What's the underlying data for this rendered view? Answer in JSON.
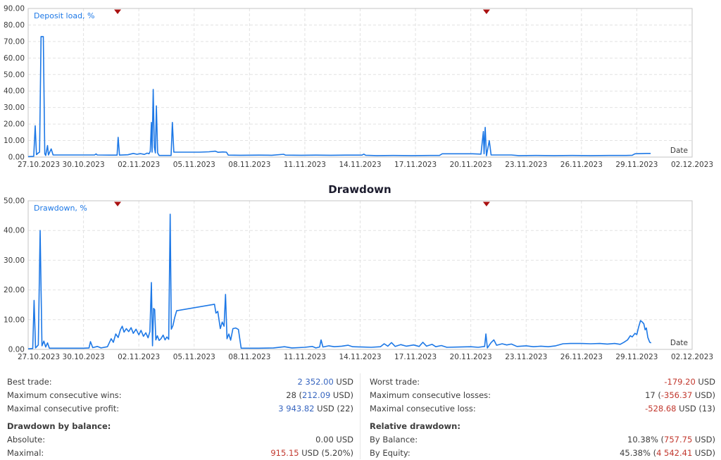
{
  "colors": {
    "line": "#1d78e6",
    "marker": "#aa1111",
    "grid": "#e2e2e2",
    "frame": "#c4c4c4",
    "tick_text": "#3a3a3a",
    "title_text": "#1c1c2e",
    "value_blue": "#3866c0",
    "value_red": "#c2382e",
    "plain_text": "#3c3c3c"
  },
  "chart_data": [
    {
      "type": "line",
      "id": "deposit-load",
      "title": "",
      "series_label": "Deposit load, %",
      "date_label": "Date",
      "xlim": [
        0,
        36
      ],
      "ylim": [
        0,
        90
      ],
      "grid": "dashed",
      "yticks": [
        {
          "v": 0,
          "label": "0.00"
        },
        {
          "v": 10,
          "label": "10.00"
        },
        {
          "v": 20,
          "label": "20.00"
        },
        {
          "v": 30,
          "label": "30.00"
        },
        {
          "v": 40,
          "label": "40.00"
        },
        {
          "v": 50,
          "label": "50.00"
        },
        {
          "v": 60,
          "label": "60.00"
        },
        {
          "v": 70,
          "label": "70.00"
        },
        {
          "v": 80,
          "label": "80.00"
        },
        {
          "v": 90,
          "label": "90.00"
        }
      ],
      "xticks": [
        {
          "d": 0,
          "label": "27.10.2023"
        },
        {
          "d": 3,
          "label": "30.10.2023"
        },
        {
          "d": 6,
          "label": "02.11.2023"
        },
        {
          "d": 9,
          "label": "05.11.2023"
        },
        {
          "d": 12,
          "label": "08.11.2023"
        },
        {
          "d": 15,
          "label": "11.11.2023"
        },
        {
          "d": 18,
          "label": "14.11.2023"
        },
        {
          "d": 21,
          "label": "17.11.2023"
        },
        {
          "d": 24,
          "label": "20.11.2023"
        },
        {
          "d": 27,
          "label": "23.11.2023"
        },
        {
          "d": 30,
          "label": "26.11.2023"
        },
        {
          "d": 33,
          "label": "29.11.2023"
        },
        {
          "d": 36,
          "label": "02.12.2023"
        }
      ],
      "markers": [
        4.85,
        24.85
      ],
      "points": [
        [
          0.0,
          0.3
        ],
        [
          0.25,
          0.4
        ],
        [
          0.3,
          0.5
        ],
        [
          0.38,
          19
        ],
        [
          0.45,
          1.5
        ],
        [
          0.55,
          2.5
        ],
        [
          0.62,
          3
        ],
        [
          0.7,
          73
        ],
        [
          0.82,
          73
        ],
        [
          0.9,
          2
        ],
        [
          0.95,
          1
        ],
        [
          1.05,
          7
        ],
        [
          1.1,
          1.3
        ],
        [
          1.25,
          5
        ],
        [
          1.35,
          1.3
        ],
        [
          2.0,
          1.3
        ],
        [
          3.0,
          1.3
        ],
        [
          3.6,
          1.3
        ],
        [
          3.68,
          1.9
        ],
        [
          3.75,
          1.3
        ],
        [
          4.4,
          1.2
        ],
        [
          4.82,
          1.2
        ],
        [
          4.88,
          12
        ],
        [
          4.95,
          1.2
        ],
        [
          5.4,
          1.4
        ],
        [
          5.7,
          2.2
        ],
        [
          5.9,
          1.7
        ],
        [
          6.1,
          2.1
        ],
        [
          6.3,
          1.6
        ],
        [
          6.45,
          2.4
        ],
        [
          6.55,
          2.0
        ],
        [
          6.62,
          3.5
        ],
        [
          6.68,
          21
        ],
        [
          6.72,
          3
        ],
        [
          6.78,
          41
        ],
        [
          6.84,
          6
        ],
        [
          6.9,
          2.5
        ],
        [
          6.95,
          31
        ],
        [
          7.02,
          2.5
        ],
        [
          7.1,
          1.0
        ],
        [
          7.75,
          1.0
        ],
        [
          7.82,
          21
        ],
        [
          7.9,
          3.0
        ],
        [
          8.5,
          3.0
        ],
        [
          9.3,
          3.0
        ],
        [
          9.8,
          3.2
        ],
        [
          10.15,
          3.6
        ],
        [
          10.3,
          2.9
        ],
        [
          10.55,
          3.1
        ],
        [
          10.75,
          3.0
        ],
        [
          10.85,
          1.2
        ],
        [
          11.5,
          1.1
        ],
        [
          12.5,
          1.2
        ],
        [
          13.2,
          1.1
        ],
        [
          13.85,
          1.7
        ],
        [
          13.95,
          1.2
        ],
        [
          14.8,
          1.1
        ],
        [
          15.6,
          1.2
        ],
        [
          16.4,
          1.1
        ],
        [
          17.2,
          1.2
        ],
        [
          18.1,
          1.2
        ],
        [
          18.2,
          1.8
        ],
        [
          18.3,
          1.1
        ],
        [
          18.9,
          0.9
        ],
        [
          19.8,
          1.0
        ],
        [
          20.8,
          0.9
        ],
        [
          21.8,
          1.0
        ],
        [
          22.3,
          1.0
        ],
        [
          22.45,
          2.0
        ],
        [
          23.3,
          2.0
        ],
        [
          24.1,
          2.0
        ],
        [
          24.55,
          1.8
        ],
        [
          24.68,
          15.5
        ],
        [
          24.72,
          2
        ],
        [
          24.78,
          18
        ],
        [
          24.85,
          0.8
        ],
        [
          25.0,
          10
        ],
        [
          25.1,
          1.3
        ],
        [
          25.6,
          1.3
        ],
        [
          26.2,
          1.3
        ],
        [
          26.6,
          0.9
        ],
        [
          27.5,
          1.0
        ],
        [
          28.5,
          0.9
        ],
        [
          29.5,
          1.0
        ],
        [
          30.5,
          0.9
        ],
        [
          31.5,
          1.0
        ],
        [
          32.4,
          1.0
        ],
        [
          32.75,
          1.1
        ],
        [
          32.9,
          2.0
        ],
        [
          33.2,
          2.1
        ],
        [
          33.5,
          2.2
        ],
        [
          33.75,
          2.2
        ]
      ]
    },
    {
      "type": "line",
      "id": "drawdown",
      "title": "Drawdown",
      "series_label": "Drawdown, %",
      "date_label": "Date",
      "xlim": [
        0,
        36
      ],
      "ylim": [
        0,
        50
      ],
      "grid": "dashed",
      "yticks": [
        {
          "v": 0,
          "label": "0.00"
        },
        {
          "v": 10,
          "label": "10.00"
        },
        {
          "v": 20,
          "label": "20.00"
        },
        {
          "v": 30,
          "label": "30.00"
        },
        {
          "v": 40,
          "label": "40.00"
        },
        {
          "v": 50,
          "label": "50.00"
        }
      ],
      "xticks": [
        {
          "d": 0,
          "label": "27.10.2023"
        },
        {
          "d": 3,
          "label": "30.10.2023"
        },
        {
          "d": 6,
          "label": "02.11.2023"
        },
        {
          "d": 9,
          "label": "05.11.2023"
        },
        {
          "d": 12,
          "label": "08.11.2023"
        },
        {
          "d": 15,
          "label": "11.11.2023"
        },
        {
          "d": 18,
          "label": "14.11.2023"
        },
        {
          "d": 21,
          "label": "17.11.2023"
        },
        {
          "d": 24,
          "label": "20.11.2023"
        },
        {
          "d": 27,
          "label": "23.11.2023"
        },
        {
          "d": 30,
          "label": "26.11.2023"
        },
        {
          "d": 33,
          "label": "29.11.2023"
        },
        {
          "d": 36,
          "label": "02.12.2023"
        }
      ],
      "markers": [
        4.85,
        24.85
      ],
      "points": [
        [
          0.0,
          0.2
        ],
        [
          0.25,
          0.3
        ],
        [
          0.32,
          16.5
        ],
        [
          0.4,
          0.5
        ],
        [
          0.55,
          1.5
        ],
        [
          0.65,
          40
        ],
        [
          0.75,
          1.2
        ],
        [
          0.85,
          2.8
        ],
        [
          0.95,
          0.8
        ],
        [
          1.05,
          2.2
        ],
        [
          1.15,
          0.4
        ],
        [
          2.0,
          0.4
        ],
        [
          3.0,
          0.4
        ],
        [
          3.3,
          0.5
        ],
        [
          3.38,
          2.6
        ],
        [
          3.5,
          0.6
        ],
        [
          3.75,
          1.0
        ],
        [
          3.95,
          0.5
        ],
        [
          4.3,
          0.9
        ],
        [
          4.5,
          3.6
        ],
        [
          4.62,
          2.4
        ],
        [
          4.75,
          5.2
        ],
        [
          4.88,
          4.0
        ],
        [
          5.0,
          6.6
        ],
        [
          5.1,
          7.8
        ],
        [
          5.2,
          5.8
        ],
        [
          5.32,
          7.0
        ],
        [
          5.45,
          6.0
        ],
        [
          5.58,
          7.3
        ],
        [
          5.7,
          5.4
        ],
        [
          5.85,
          6.8
        ],
        [
          6.0,
          4.9
        ],
        [
          6.12,
          6.4
        ],
        [
          6.25,
          4.4
        ],
        [
          6.38,
          5.6
        ],
        [
          6.5,
          3.9
        ],
        [
          6.6,
          6.0
        ],
        [
          6.68,
          22.5
        ],
        [
          6.74,
          1.2
        ],
        [
          6.8,
          13.8
        ],
        [
          6.86,
          13.4
        ],
        [
          6.92,
          3.2
        ],
        [
          7.0,
          4.6
        ],
        [
          7.1,
          3.0
        ],
        [
          7.2,
          3.6
        ],
        [
          7.32,
          4.8
        ],
        [
          7.42,
          3.2
        ],
        [
          7.52,
          4.2
        ],
        [
          7.62,
          3.4
        ],
        [
          7.7,
          45.5
        ],
        [
          7.76,
          6.8
        ],
        [
          7.85,
          8.0
        ],
        [
          7.95,
          10.8
        ],
        [
          8.05,
          13.0
        ],
        [
          8.15,
          13.1
        ],
        [
          10.1,
          15.2
        ],
        [
          10.18,
          12.2
        ],
        [
          10.28,
          12.8
        ],
        [
          10.42,
          7.0
        ],
        [
          10.52,
          9.2
        ],
        [
          10.62,
          7.8
        ],
        [
          10.7,
          18.5
        ],
        [
          10.78,
          3.6
        ],
        [
          10.88,
          5.2
        ],
        [
          10.98,
          3.1
        ],
        [
          11.1,
          7.0
        ],
        [
          11.25,
          7.2
        ],
        [
          11.4,
          6.7
        ],
        [
          11.55,
          0.4
        ],
        [
          12.5,
          0.4
        ],
        [
          13.3,
          0.5
        ],
        [
          13.9,
          0.9
        ],
        [
          14.3,
          0.5
        ],
        [
          15.0,
          0.7
        ],
        [
          15.4,
          1.0
        ],
        [
          15.6,
          0.5
        ],
        [
          15.8,
          0.8
        ],
        [
          15.88,
          3.2
        ],
        [
          15.98,
          0.8
        ],
        [
          16.3,
          1.2
        ],
        [
          16.6,
          0.9
        ],
        [
          17.0,
          1.1
        ],
        [
          17.35,
          1.4
        ],
        [
          17.6,
          0.9
        ],
        [
          18.1,
          0.8
        ],
        [
          18.6,
          0.7
        ],
        [
          19.1,
          0.9
        ],
        [
          19.3,
          1.9
        ],
        [
          19.5,
          1.1
        ],
        [
          19.7,
          2.3
        ],
        [
          19.9,
          1.0
        ],
        [
          20.2,
          1.6
        ],
        [
          20.5,
          1.1
        ],
        [
          20.9,
          1.5
        ],
        [
          21.2,
          1.0
        ],
        [
          21.4,
          2.4
        ],
        [
          21.6,
          1.1
        ],
        [
          21.9,
          1.7
        ],
        [
          22.1,
          0.9
        ],
        [
          22.4,
          1.3
        ],
        [
          22.7,
          0.7
        ],
        [
          23.4,
          0.8
        ],
        [
          24.0,
          0.9
        ],
        [
          24.4,
          0.7
        ],
        [
          24.75,
          1.0
        ],
        [
          24.82,
          5.2
        ],
        [
          24.9,
          0.5
        ],
        [
          25.1,
          2.3
        ],
        [
          25.25,
          3.2
        ],
        [
          25.4,
          1.4
        ],
        [
          25.7,
          1.9
        ],
        [
          25.95,
          1.5
        ],
        [
          26.2,
          1.8
        ],
        [
          26.5,
          1.0
        ],
        [
          27.0,
          1.2
        ],
        [
          27.4,
          0.9
        ],
        [
          27.8,
          1.1
        ],
        [
          28.2,
          0.9
        ],
        [
          28.6,
          1.2
        ],
        [
          29.0,
          1.9
        ],
        [
          29.4,
          2.0
        ],
        [
          30.0,
          2.0
        ],
        [
          30.5,
          1.9
        ],
        [
          31.0,
          2.0
        ],
        [
          31.4,
          1.8
        ],
        [
          31.8,
          2.0
        ],
        [
          32.1,
          1.7
        ],
        [
          32.3,
          2.4
        ],
        [
          32.5,
          3.2
        ],
        [
          32.65,
          4.6
        ],
        [
          32.75,
          4.2
        ],
        [
          32.9,
          5.4
        ],
        [
          33.0,
          5.0
        ],
        [
          33.1,
          7.5
        ],
        [
          33.2,
          9.7
        ],
        [
          33.3,
          9.2
        ],
        [
          33.38,
          8.6
        ],
        [
          33.45,
          6.6
        ],
        [
          33.52,
          7.2
        ],
        [
          33.6,
          4.0
        ],
        [
          33.7,
          2.4
        ],
        [
          33.78,
          2.2
        ]
      ]
    }
  ],
  "stats": {
    "left": {
      "rows": [
        {
          "label": "Best trade:",
          "value": [
            {
              "t": "2 352.00",
              "c": "blue"
            },
            {
              "t": " USD",
              "c": "plain"
            }
          ]
        },
        {
          "label": "Maximum consecutive wins:",
          "value": [
            {
              "t": "28 (",
              "c": "plain"
            },
            {
              "t": "212.09",
              "c": "blue"
            },
            {
              "t": " USD)",
              "c": "plain"
            }
          ]
        },
        {
          "label": "Maximal consecutive profit:",
          "value": [
            {
              "t": "3 943.82",
              "c": "blue"
            },
            {
              "t": " USD (22)",
              "c": "plain"
            }
          ]
        }
      ],
      "header": "Drawdown by balance:",
      "rows2": [
        {
          "label": "Absolute:",
          "value": [
            {
              "t": "0.00 USD",
              "c": "plain"
            }
          ]
        },
        {
          "label": "Maximal:",
          "value": [
            {
              "t": "915.15",
              "c": "red"
            },
            {
              "t": " USD (5.20%)",
              "c": "plain"
            }
          ]
        }
      ]
    },
    "right": {
      "rows": [
        {
          "label": "Worst trade:",
          "value": [
            {
              "t": "-179.20",
              "c": "red"
            },
            {
              "t": " USD",
              "c": "plain"
            }
          ]
        },
        {
          "label": "Maximum consecutive losses:",
          "value": [
            {
              "t": "17 (",
              "c": "plain"
            },
            {
              "t": "-356.37",
              "c": "red"
            },
            {
              "t": " USD)",
              "c": "plain"
            }
          ]
        },
        {
          "label": "Maximal consecutive loss:",
          "value": [
            {
              "t": "-528.68",
              "c": "red"
            },
            {
              "t": " USD (13)",
              "c": "plain"
            }
          ]
        }
      ],
      "header": "Relative drawdown:",
      "rows2": [
        {
          "label": "By Balance:",
          "value": [
            {
              "t": "10.38% (",
              "c": "plain"
            },
            {
              "t": "757.75",
              "c": "red"
            },
            {
              "t": " USD)",
              "c": "plain"
            }
          ]
        },
        {
          "label": "By Equity:",
          "value": [
            {
              "t": "45.38% (",
              "c": "plain"
            },
            {
              "t": "4 542.41",
              "c": "red"
            },
            {
              "t": " USD)",
              "c": "plain"
            }
          ]
        }
      ]
    }
  }
}
